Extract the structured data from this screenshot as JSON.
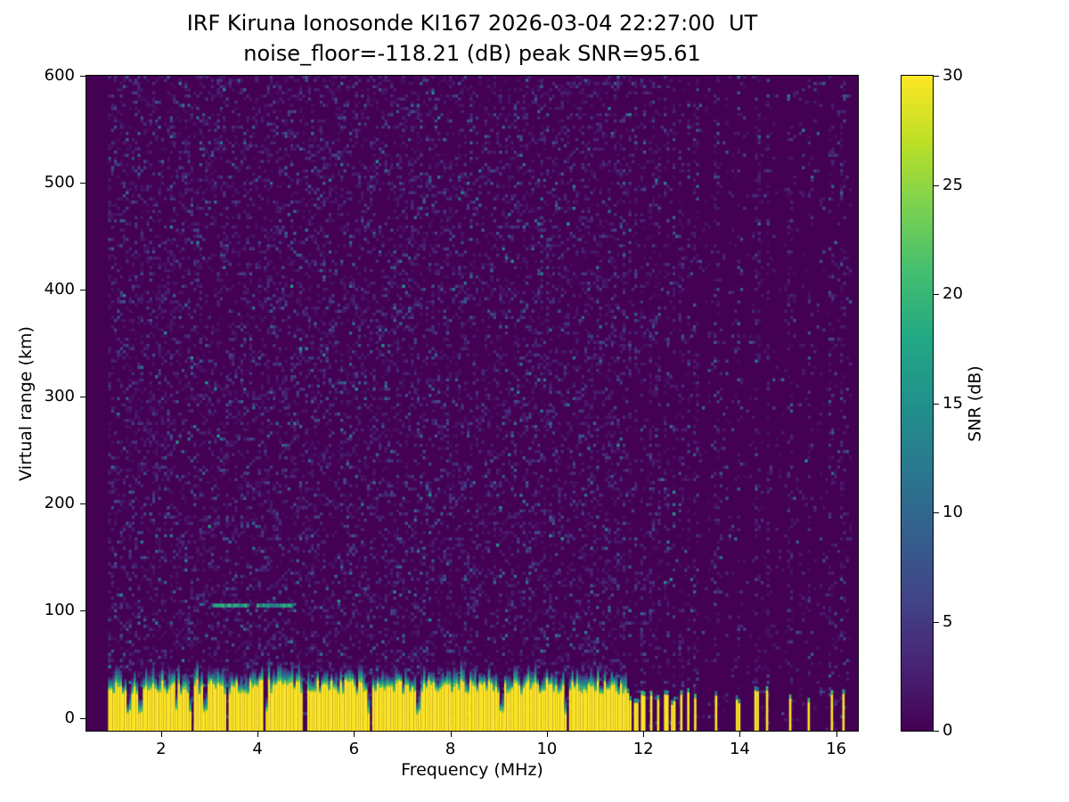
{
  "figure": {
    "title_line1": "IRF Kiruna Ionosonde KI167 2026-03-04 22:27:00  UT",
    "title_line2": "noise_floor=-118.21 (dB) peak SNR=95.61"
  },
  "chart_data": {
    "type": "heatmap",
    "title": "IRF Kiruna Ionosonde KI167 2026-03-04 22:27:00 UT",
    "subtitle": "noise_floor=-118.21 (dB) peak SNR=95.61",
    "station": "KI167",
    "timestamp_ut": "2026-03-04 22:27:00",
    "noise_floor_db": -118.21,
    "peak_snr_db": 95.61,
    "xlabel": "Frequency (MHz)",
    "ylabel": "Virtual range (km)",
    "xlim": [
      0.45,
      16.45
    ],
    "ylim": [
      -12,
      600
    ],
    "xticks": [
      2,
      4,
      6,
      8,
      10,
      12,
      14,
      16
    ],
    "yticks": [
      0,
      100,
      200,
      300,
      400,
      500,
      600
    ],
    "grid": false,
    "colorbar": {
      "label": "SNR (dB)",
      "ticks": [
        0,
        5,
        10,
        15,
        20,
        25,
        30
      ],
      "clim": [
        0,
        30
      ],
      "colormap": "viridis"
    },
    "data_freq_range_mhz": [
      0.9,
      16.3
    ],
    "features": {
      "background_snr_db": 0,
      "noise_speckle_snr_db_range": [
        0,
        16
      ],
      "ground_clutter_band": {
        "freq_mhz_range": [
          0.9,
          11.62
        ],
        "snr_db": 30,
        "top_km_min": 22,
        "top_km_max": 36,
        "fringe_extent_km": 14
      },
      "band_notches_mhz": [
        1.3,
        1.55,
        2.3,
        2.62,
        2.9,
        3.35,
        4.15,
        4.95,
        6.3,
        7.3,
        9.05,
        10.4
      ],
      "blanked_region_mhz": [
        11.62,
        16.35
      ],
      "transmit_dash_centers_mhz": [
        11.67,
        11.82,
        11.98,
        12.14,
        12.29,
        12.45,
        12.6,
        12.76,
        12.91,
        13.06,
        13.48,
        13.95,
        14.33,
        14.55,
        15.02,
        15.4,
        15.88,
        16.12
      ],
      "echo_trace": {
        "virtual_range_km": 105,
        "segments_mhz": [
          [
            3.05,
            3.78
          ],
          [
            3.98,
            4.68
          ]
        ],
        "snr_db": 14
      }
    }
  }
}
